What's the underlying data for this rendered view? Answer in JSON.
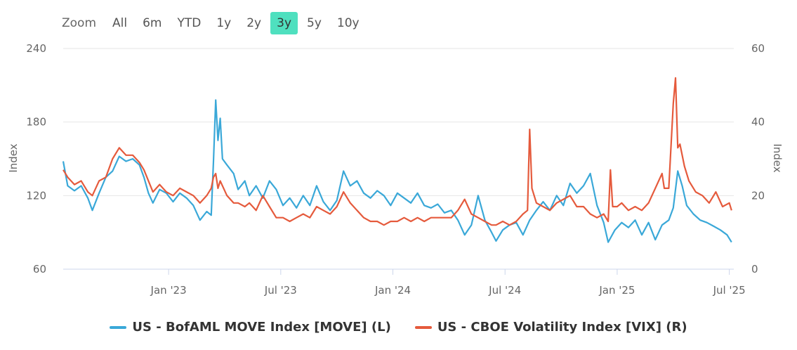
{
  "zoom": {
    "label": "Zoom",
    "buttons": [
      "All",
      "6m",
      "YTD",
      "1y",
      "2y",
      "3y",
      "5y",
      "10y"
    ],
    "active": "3y"
  },
  "chart_data": {
    "type": "line",
    "x_ticks": [
      "Jan '23",
      "Jul '23",
      "Jan '24",
      "Jul '24",
      "Jan '25",
      "Jul '25"
    ],
    "x_tick_dates": [
      2023.0,
      2023.5,
      2024.0,
      2024.5,
      2025.0,
      2025.5
    ],
    "xlim": [
      2022.53,
      2025.52
    ],
    "y_left": {
      "label": "Index",
      "ticks": [
        "240",
        "180",
        "120",
        "60"
      ],
      "ylim": [
        60,
        240
      ]
    },
    "y_right": {
      "label": "Index",
      "ticks": [
        "60",
        "40",
        "20",
        "0"
      ],
      "ylim": [
        0,
        60
      ]
    },
    "series": [
      {
        "name": "US - BofAML MOVE Index [MOVE] (L)",
        "color": "#3aa8d8",
        "axis": "left",
        "points": [
          [
            2022.53,
            148
          ],
          [
            2022.55,
            128
          ],
          [
            2022.58,
            124
          ],
          [
            2022.61,
            128
          ],
          [
            2022.64,
            118
          ],
          [
            2022.66,
            108
          ],
          [
            2022.69,
            122
          ],
          [
            2022.72,
            135
          ],
          [
            2022.75,
            140
          ],
          [
            2022.78,
            152
          ],
          [
            2022.81,
            148
          ],
          [
            2022.84,
            150
          ],
          [
            2022.87,
            145
          ],
          [
            2022.89,
            135
          ],
          [
            2022.91,
            122
          ],
          [
            2022.93,
            114
          ],
          [
            2022.96,
            125
          ],
          [
            2022.99,
            122
          ],
          [
            2023.02,
            115
          ],
          [
            2023.05,
            122
          ],
          [
            2023.08,
            118
          ],
          [
            2023.11,
            112
          ],
          [
            2023.14,
            100
          ],
          [
            2023.17,
            107
          ],
          [
            2023.19,
            104
          ],
          [
            2023.2,
            148
          ],
          [
            2023.21,
            198
          ],
          [
            2023.22,
            165
          ],
          [
            2023.23,
            183
          ],
          [
            2023.24,
            150
          ],
          [
            2023.26,
            145
          ],
          [
            2023.29,
            138
          ],
          [
            2023.31,
            125
          ],
          [
            2023.34,
            132
          ],
          [
            2023.36,
            120
          ],
          [
            2023.39,
            128
          ],
          [
            2023.42,
            118
          ],
          [
            2023.45,
            132
          ],
          [
            2023.48,
            125
          ],
          [
            2023.51,
            112
          ],
          [
            2023.54,
            118
          ],
          [
            2023.57,
            110
          ],
          [
            2023.6,
            120
          ],
          [
            2023.63,
            112
          ],
          [
            2023.66,
            128
          ],
          [
            2023.69,
            115
          ],
          [
            2023.72,
            108
          ],
          [
            2023.75,
            116
          ],
          [
            2023.78,
            140
          ],
          [
            2023.81,
            128
          ],
          [
            2023.84,
            132
          ],
          [
            2023.87,
            122
          ],
          [
            2023.9,
            118
          ],
          [
            2023.93,
            124
          ],
          [
            2023.96,
            120
          ],
          [
            2023.99,
            112
          ],
          [
            2024.02,
            122
          ],
          [
            2024.05,
            118
          ],
          [
            2024.08,
            114
          ],
          [
            2024.11,
            122
          ],
          [
            2024.14,
            112
          ],
          [
            2024.17,
            110
          ],
          [
            2024.2,
            113
          ],
          [
            2024.23,
            106
          ],
          [
            2024.26,
            108
          ],
          [
            2024.29,
            100
          ],
          [
            2024.32,
            88
          ],
          [
            2024.35,
            96
          ],
          [
            2024.38,
            120
          ],
          [
            2024.41,
            100
          ],
          [
            2024.44,
            90
          ],
          [
            2024.46,
            83
          ],
          [
            2024.49,
            92
          ],
          [
            2024.52,
            96
          ],
          [
            2024.55,
            98
          ],
          [
            2024.58,
            88
          ],
          [
            2024.61,
            100
          ],
          [
            2024.64,
            108
          ],
          [
            2024.67,
            115
          ],
          [
            2024.7,
            108
          ],
          [
            2024.73,
            120
          ],
          [
            2024.76,
            112
          ],
          [
            2024.79,
            130
          ],
          [
            2024.82,
            122
          ],
          [
            2024.85,
            128
          ],
          [
            2024.88,
            138
          ],
          [
            2024.91,
            112
          ],
          [
            2024.94,
            98
          ],
          [
            2024.96,
            82
          ],
          [
            2024.99,
            92
          ],
          [
            2025.02,
            98
          ],
          [
            2025.05,
            94
          ],
          [
            2025.08,
            100
          ],
          [
            2025.11,
            88
          ],
          [
            2025.14,
            98
          ],
          [
            2025.17,
            84
          ],
          [
            2025.2,
            96
          ],
          [
            2025.23,
            100
          ],
          [
            2025.25,
            110
          ],
          [
            2025.27,
            140
          ],
          [
            2025.29,
            128
          ],
          [
            2025.31,
            112
          ],
          [
            2025.34,
            105
          ],
          [
            2025.37,
            100
          ],
          [
            2025.4,
            98
          ],
          [
            2025.43,
            95
          ],
          [
            2025.46,
            92
          ],
          [
            2025.49,
            88
          ],
          [
            2025.51,
            82
          ]
        ]
      },
      {
        "name": "US - CBOE Volatility Index [VIX] (R)",
        "color": "#e55a3c",
        "axis": "right",
        "points": [
          [
            2022.53,
            27
          ],
          [
            2022.55,
            25
          ],
          [
            2022.58,
            23
          ],
          [
            2022.61,
            24
          ],
          [
            2022.64,
            21
          ],
          [
            2022.66,
            20
          ],
          [
            2022.69,
            24
          ],
          [
            2022.72,
            25
          ],
          [
            2022.75,
            30
          ],
          [
            2022.78,
            33
          ],
          [
            2022.81,
            31
          ],
          [
            2022.84,
            31
          ],
          [
            2022.87,
            29
          ],
          [
            2022.89,
            27
          ],
          [
            2022.91,
            24
          ],
          [
            2022.93,
            21
          ],
          [
            2022.96,
            23
          ],
          [
            2022.99,
            21
          ],
          [
            2023.02,
            20
          ],
          [
            2023.05,
            22
          ],
          [
            2023.08,
            21
          ],
          [
            2023.11,
            20
          ],
          [
            2023.14,
            18
          ],
          [
            2023.17,
            20
          ],
          [
            2023.19,
            22
          ],
          [
            2023.2,
            25
          ],
          [
            2023.21,
            26
          ],
          [
            2023.22,
            22
          ],
          [
            2023.23,
            24
          ],
          [
            2023.26,
            20
          ],
          [
            2023.29,
            18
          ],
          [
            2023.31,
            18
          ],
          [
            2023.34,
            17
          ],
          [
            2023.36,
            18
          ],
          [
            2023.39,
            16
          ],
          [
            2023.42,
            20
          ],
          [
            2023.45,
            17
          ],
          [
            2023.48,
            14
          ],
          [
            2023.51,
            14
          ],
          [
            2023.54,
            13
          ],
          [
            2023.57,
            14
          ],
          [
            2023.6,
            15
          ],
          [
            2023.63,
            14
          ],
          [
            2023.66,
            17
          ],
          [
            2023.69,
            16
          ],
          [
            2023.72,
            15
          ],
          [
            2023.75,
            17
          ],
          [
            2023.78,
            21
          ],
          [
            2023.81,
            18
          ],
          [
            2023.84,
            16
          ],
          [
            2023.87,
            14
          ],
          [
            2023.9,
            13
          ],
          [
            2023.93,
            13
          ],
          [
            2023.96,
            12
          ],
          [
            2023.99,
            13
          ],
          [
            2024.02,
            13
          ],
          [
            2024.05,
            14
          ],
          [
            2024.08,
            13
          ],
          [
            2024.11,
            14
          ],
          [
            2024.14,
            13
          ],
          [
            2024.17,
            14
          ],
          [
            2024.2,
            14
          ],
          [
            2024.23,
            14
          ],
          [
            2024.26,
            14
          ],
          [
            2024.29,
            16
          ],
          [
            2024.32,
            19
          ],
          [
            2024.35,
            15
          ],
          [
            2024.38,
            14
          ],
          [
            2024.41,
            13
          ],
          [
            2024.44,
            12
          ],
          [
            2024.46,
            12
          ],
          [
            2024.49,
            13
          ],
          [
            2024.52,
            12
          ],
          [
            2024.55,
            13
          ],
          [
            2024.58,
            15
          ],
          [
            2024.6,
            16
          ],
          [
            2024.61,
            38
          ],
          [
            2024.62,
            22
          ],
          [
            2024.64,
            18
          ],
          [
            2024.67,
            17
          ],
          [
            2024.7,
            16
          ],
          [
            2024.73,
            18
          ],
          [
            2024.76,
            19
          ],
          [
            2024.79,
            20
          ],
          [
            2024.82,
            17
          ],
          [
            2024.85,
            17
          ],
          [
            2024.88,
            15
          ],
          [
            2024.91,
            14
          ],
          [
            2024.94,
            15
          ],
          [
            2024.96,
            13
          ],
          [
            2024.97,
            27
          ],
          [
            2024.98,
            17
          ],
          [
            2025.0,
            17
          ],
          [
            2025.02,
            18
          ],
          [
            2025.05,
            16
          ],
          [
            2025.08,
            17
          ],
          [
            2025.11,
            16
          ],
          [
            2025.14,
            18
          ],
          [
            2025.17,
            22
          ],
          [
            2025.2,
            26
          ],
          [
            2025.21,
            22
          ],
          [
            2025.23,
            22
          ],
          [
            2025.25,
            45
          ],
          [
            2025.26,
            52
          ],
          [
            2025.27,
            33
          ],
          [
            2025.28,
            34
          ],
          [
            2025.3,
            28
          ],
          [
            2025.32,
            24
          ],
          [
            2025.35,
            21
          ],
          [
            2025.38,
            20
          ],
          [
            2025.41,
            18
          ],
          [
            2025.44,
            21
          ],
          [
            2025.47,
            17
          ],
          [
            2025.5,
            18
          ],
          [
            2025.51,
            16
          ]
        ]
      }
    ]
  }
}
